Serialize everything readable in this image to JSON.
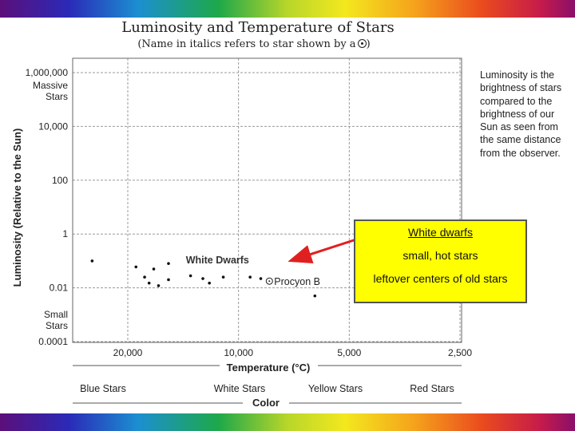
{
  "slide": {
    "title": "Luminosity and Temperature of Stars",
    "subtitle": "(Name in italics refers to star shown by a",
    "note": "Luminosity is the brightness of stars compared to the brightness of our Sun as seen from the same distance from the observer.",
    "callout": {
      "title": "White dwarfs",
      "line1": "small, hot stars",
      "line2": "leftover centers of old stars"
    },
    "colors": {
      "callout_fill": "#ffff00",
      "arrow": "#e02020"
    }
  },
  "chart_data": {
    "type": "scatter",
    "xlabel": "Temperature (°C)",
    "ylabel": "Luminosity (Relative to the Sun)",
    "x_scale": "log-reversed",
    "xlim": [
      30000,
      2500
    ],
    "ylim": [
      0.0001,
      1000000
    ],
    "y_scale": "log",
    "x_ticks": [
      {
        "value": 20000,
        "label": "20,000"
      },
      {
        "value": 10000,
        "label": "10,000"
      },
      {
        "value": 5000,
        "label": "5,000"
      },
      {
        "value": 2500,
        "label": "2,500"
      }
    ],
    "y_ticks": [
      {
        "value": 1000000,
        "label": "1,000,000"
      },
      {
        "value": 10000,
        "label": "10,000"
      },
      {
        "value": 100,
        "label": "100"
      },
      {
        "value": 1,
        "label": "1"
      },
      {
        "value": 0.01,
        "label": "0.01"
      },
      {
        "value": 0.0001,
        "label": "0.0001"
      }
    ],
    "y_annotations": [
      {
        "value": 1000000,
        "lines": [
          "Massive",
          "Stars"
        ]
      },
      {
        "value": 0.0001,
        "lines": [
          "Small",
          "Stars"
        ]
      }
    ],
    "color_axis": {
      "label": "Color",
      "ranges": [
        "Blue Stars",
        "White Stars",
        "Yellow Stars",
        "Red Stars"
      ]
    },
    "annotations": [
      {
        "text": "White Dwarfs",
        "x": 11500,
        "y": 0.1
      },
      {
        "text": "Procyon B",
        "x": 8000,
        "y": 0.025
      }
    ],
    "grid": true,
    "points": [
      {
        "x": 25000,
        "y": 0.1
      },
      {
        "x": 19000,
        "y": 0.06
      },
      {
        "x": 17000,
        "y": 0.05
      },
      {
        "x": 15500,
        "y": 0.08
      },
      {
        "x": 18000,
        "y": 0.025
      },
      {
        "x": 17500,
        "y": 0.015
      },
      {
        "x": 16500,
        "y": 0.012
      },
      {
        "x": 15500,
        "y": 0.02
      },
      {
        "x": 13500,
        "y": 0.028
      },
      {
        "x": 12500,
        "y": 0.022
      },
      {
        "x": 12000,
        "y": 0.015
      },
      {
        "x": 11000,
        "y": 0.025
      },
      {
        "x": 9300,
        "y": 0.025
      },
      {
        "x": 8700,
        "y": 0.022
      },
      {
        "x": 6200,
        "y": 0.005
      },
      {
        "x": 4800,
        "y": 0.003
      }
    ]
  }
}
